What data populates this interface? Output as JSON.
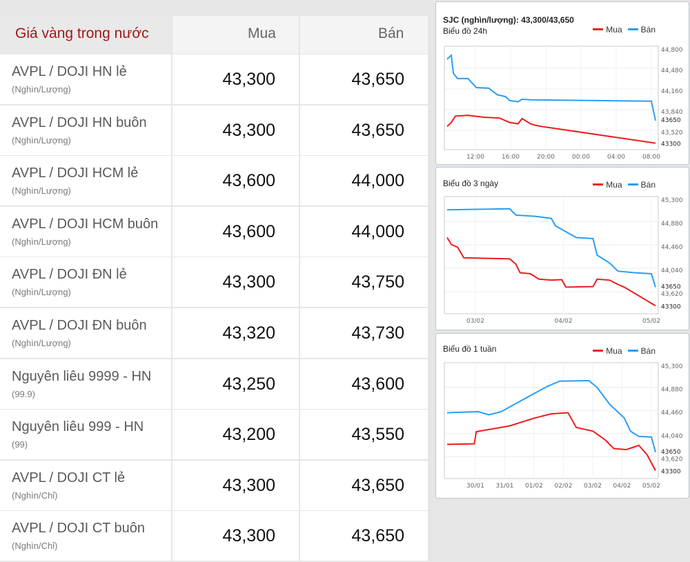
{
  "table": {
    "title": "Giá vàng trong nước",
    "buy_header": "Mua",
    "sell_header": "Bán",
    "rows": [
      {
        "name": "AVPL / DOJI HN lẻ",
        "unit": "(Nghìn/Lượng)",
        "buy": "43,300",
        "sell": "43,650"
      },
      {
        "name": "AVPL / DOJI HN buôn",
        "unit": "(Nghìn/Lượng)",
        "buy": "43,300",
        "sell": "43,650"
      },
      {
        "name": "AVPL / DOJI HCM lẻ",
        "unit": "(Nghìn/Lượng)",
        "buy": "43,600",
        "sell": "44,000"
      },
      {
        "name": "AVPL / DOJI HCM buôn",
        "unit": "(Nghìn/Lượng)",
        "buy": "43,600",
        "sell": "44,000"
      },
      {
        "name": "AVPL / DOJI ĐN lẻ",
        "unit": "(Nghìn/Lượng)",
        "buy": "43,300",
        "sell": "43,750"
      },
      {
        "name": "AVPL / DOJI ĐN buôn",
        "unit": "(Nghìn/Lượng)",
        "buy": "43,320",
        "sell": "43,730"
      },
      {
        "name": "Nguyên liêu 9999 - HN",
        "unit": "(99.9)",
        "buy": "43,250",
        "sell": "43,600"
      },
      {
        "name": "Nguyên liêu 999 - HN",
        "unit": "(99)",
        "buy": "43,200",
        "sell": "43,550"
      },
      {
        "name": "AVPL / DOJI CT lẻ",
        "unit": "(Nghìn/Chỉ)",
        "buy": "43,300",
        "sell": "43,650"
      },
      {
        "name": "AVPL / DOJI CT buôn",
        "unit": "(Nghìn/Chỉ)",
        "buy": "43,300",
        "sell": "43,650"
      }
    ]
  },
  "panel_header": "SJC (nghìn/lượng): 43,300/43,650",
  "colors": {
    "buy": "#ee1c1c",
    "sell": "#2a9df4"
  },
  "chart_data": [
    {
      "type": "line",
      "title": "Biểu đồ 24h",
      "x_ticks": [
        "12:00",
        "16:00",
        "20:00",
        "00:00",
        "04:00",
        "08:00"
      ],
      "y_ticks": [
        "44,800",
        "44,480",
        "44,160",
        "43,840",
        "43,520"
      ],
      "ylim": [
        43200,
        44800
      ],
      "end_labels": [
        "43650",
        "43300"
      ],
      "series": [
        {
          "name": "Mua",
          "color": "#ee1c1c",
          "points": [
            [
              0,
              43560
            ],
            [
              0.02,
              43620
            ],
            [
              0.04,
              43720
            ],
            [
              0.1,
              43730
            ],
            [
              0.18,
              43700
            ],
            [
              0.25,
              43690
            ],
            [
              0.3,
              43620
            ],
            [
              0.34,
              43600
            ],
            [
              0.36,
              43680
            ],
            [
              0.4,
              43600
            ],
            [
              0.42,
              43580
            ],
            [
              0.45,
              43560
            ],
            [
              1,
              43300
            ]
          ]
        },
        {
          "name": "Bán",
          "color": "#2a9df4",
          "points": [
            [
              0,
              44600
            ],
            [
              0.02,
              44660
            ],
            [
              0.03,
              44380
            ],
            [
              0.05,
              44300
            ],
            [
              0.1,
              44300
            ],
            [
              0.14,
              44160
            ],
            [
              0.2,
              44150
            ],
            [
              0.24,
              44050
            ],
            [
              0.28,
              44020
            ],
            [
              0.3,
              43960
            ],
            [
              0.34,
              43940
            ],
            [
              0.36,
              43980
            ],
            [
              0.4,
              43970
            ],
            [
              0.98,
              43950
            ],
            [
              1,
              43650
            ]
          ]
        }
      ]
    },
    {
      "type": "line",
      "title": "Biểu đồ 3 ngày",
      "x_ticks": [
        "03/02",
        "04/02",
        "05/02"
      ],
      "y_ticks": [
        "45,300",
        "44,880",
        "44,460",
        "44,040",
        "43,620"
      ],
      "ylim": [
        43150,
        45350
      ],
      "end_labels": [
        "43650",
        "43300"
      ],
      "series": [
        {
          "name": "Mua",
          "color": "#ee1c1c",
          "points": [
            [
              0,
              44580
            ],
            [
              0.02,
              44450
            ],
            [
              0.05,
              44400
            ],
            [
              0.08,
              44200
            ],
            [
              0.3,
              44180
            ],
            [
              0.33,
              44080
            ],
            [
              0.35,
              43920
            ],
            [
              0.4,
              43900
            ],
            [
              0.42,
              43850
            ],
            [
              0.44,
              43800
            ],
            [
              0.5,
              43780
            ],
            [
              0.55,
              43790
            ],
            [
              0.57,
              43650
            ],
            [
              0.7,
              43660
            ],
            [
              0.72,
              43800
            ],
            [
              0.78,
              43780
            ],
            [
              0.82,
              43700
            ],
            [
              0.85,
              43650
            ],
            [
              1,
              43300
            ]
          ]
        },
        {
          "name": "Bán",
          "color": "#2a9df4",
          "points": [
            [
              0,
              45100
            ],
            [
              0.3,
              45120
            ],
            [
              0.33,
              45000
            ],
            [
              0.42,
              44980
            ],
            [
              0.5,
              44940
            ],
            [
              0.52,
              44800
            ],
            [
              0.62,
              44580
            ],
            [
              0.7,
              44560
            ],
            [
              0.72,
              44250
            ],
            [
              0.78,
              44100
            ],
            [
              0.82,
              43950
            ],
            [
              0.9,
              43920
            ],
            [
              0.98,
              43900
            ],
            [
              1,
              43650
            ]
          ]
        }
      ]
    },
    {
      "type": "line",
      "title": "Biểu đồ 1 tuần",
      "x_ticks": [
        "30/01",
        "31/01",
        "01/02",
        "02/02",
        "03/02",
        "04/02",
        "05/02"
      ],
      "y_ticks": [
        "45,300",
        "44,880",
        "44,460",
        "44,040",
        "43,620"
      ],
      "ylim": [
        43150,
        45350
      ],
      "end_labels": [
        "43650",
        "43300"
      ],
      "series": [
        {
          "name": "Mua",
          "color": "#ee1c1c",
          "points": [
            [
              0,
              43800
            ],
            [
              0.13,
              43810
            ],
            [
              0.14,
              44040
            ],
            [
              0.3,
              44150
            ],
            [
              0.42,
              44300
            ],
            [
              0.5,
              44380
            ],
            [
              0.58,
              44400
            ],
            [
              0.62,
              44120
            ],
            [
              0.7,
              44050
            ],
            [
              0.76,
              43880
            ],
            [
              0.8,
              43720
            ],
            [
              0.86,
              43700
            ],
            [
              0.92,
              43780
            ],
            [
              0.96,
              43600
            ],
            [
              1,
              43300
            ]
          ]
        },
        {
          "name": "Bán",
          "color": "#2a9df4",
          "points": [
            [
              0,
              44400
            ],
            [
              0.15,
              44420
            ],
            [
              0.2,
              44360
            ],
            [
              0.26,
              44420
            ],
            [
              0.36,
              44640
            ],
            [
              0.48,
              44900
            ],
            [
              0.54,
              45000
            ],
            [
              0.68,
              45010
            ],
            [
              0.72,
              44880
            ],
            [
              0.78,
              44560
            ],
            [
              0.85,
              44300
            ],
            [
              0.88,
              44050
            ],
            [
              0.92,
              43950
            ],
            [
              0.98,
              43940
            ],
            [
              1,
              43650
            ]
          ]
        }
      ]
    }
  ],
  "legend": {
    "buy": "Mua",
    "sell": "Bán"
  }
}
